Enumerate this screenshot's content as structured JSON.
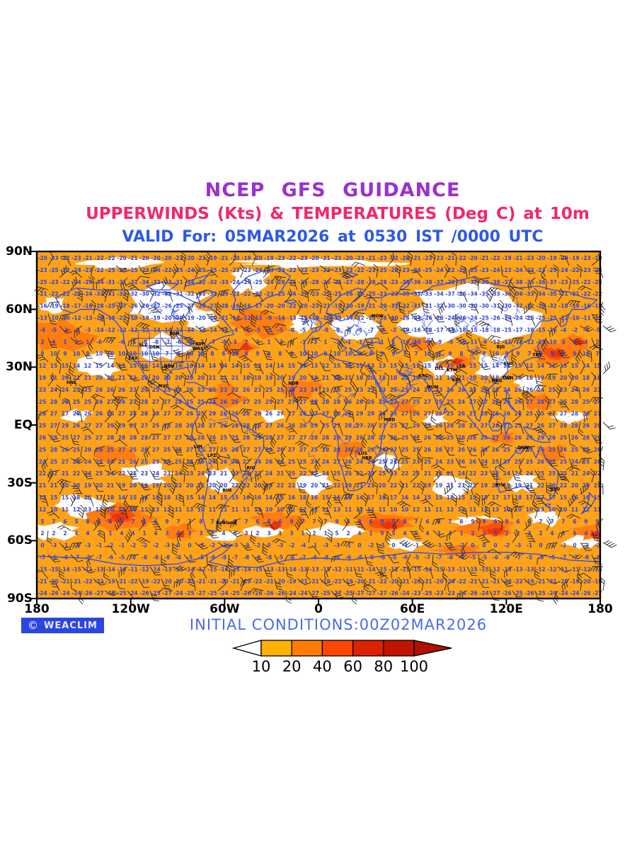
{
  "page": {
    "background": "#FFFFFF"
  },
  "header": {
    "title": "NCEP GFS GUIDANCE",
    "subtitle": "UPPERWINDS (Kts) & TEMPERATURES (Deg C) at 10m",
    "valid_line": "VALID For: 05MAR2026 at 0530 IST /0000 UTC",
    "title_color": "#9B30D0",
    "subtitle_color": "#F1276E",
    "valid_color": "#2D59E8"
  },
  "map": {
    "y_axis_labels": [
      "90N",
      "60N",
      "30N",
      "EQ",
      "30S",
      "60S",
      "90S"
    ],
    "x_axis_labels": [
      "180",
      "120W",
      "60W",
      "0",
      "60E",
      "120E",
      "180"
    ],
    "colors": {
      "calm_white": "#FFFFFF",
      "light_wind_orange": "#FFA216",
      "moderate_wind_orange": "#FF7C0E",
      "strong_wind_orange": "#F8500C",
      "severe_wind_red": "#E8330F",
      "coastline_blue": "#2B4BE8",
      "temperature_blue": "#2E44DE",
      "barb_black": "#222222",
      "graticule_gray": "#999999",
      "frame_black": "#000000"
    },
    "station_labels": [
      {
        "code": "DLH",
        "lon": -92.1,
        "lat": 46.8
      },
      {
        "code": "AVP",
        "lon": -75.7,
        "lat": 41.3
      },
      {
        "code": "WAS",
        "lon": -77.0,
        "lat": 38.9
      },
      {
        "code": "SLC",
        "lon": -111.9,
        "lat": 40.8
      },
      {
        "code": "DEN",
        "lon": -104.9,
        "lat": 39.7
      },
      {
        "code": "LAX",
        "lon": -118.4,
        "lat": 33.9
      },
      {
        "code": "HOU",
        "lon": -95.4,
        "lat": 29.8
      },
      {
        "code": "MXC",
        "lon": -99.1,
        "lat": 19.4
      },
      {
        "code": "HNL",
        "lon": -157.9,
        "lat": 21.3
      },
      {
        "code": "LIM",
        "lon": -77.0,
        "lat": -12.0
      },
      {
        "code": "LPZ",
        "lon": -68.2,
        "lat": -16.5
      },
      {
        "code": "RIO",
        "lon": -43.2,
        "lat": -23.0
      },
      {
        "code": "BUE",
        "lon": -58.4,
        "lat": -34.6
      },
      {
        "code": "Falkland",
        "lon": -59.0,
        "lat": -51.5
      },
      {
        "code": "NDB",
        "lon": -16.0,
        "lat": 21.0
      },
      {
        "code": "LUS",
        "lon": 28.3,
        "lat": -15.4
      },
      {
        "code": "HRR",
        "lon": 31.0,
        "lat": -17.8
      },
      {
        "code": "MOD",
        "lon": 45.3,
        "lat": 2.0
      },
      {
        "code": "MOW",
        "lon": 37.6,
        "lat": 55.8
      },
      {
        "code": "KRC",
        "lon": 67.0,
        "lat": 24.8
      },
      {
        "code": "DEL",
        "lon": 77.2,
        "lat": 28.6
      },
      {
        "code": "MUM",
        "lon": 72.8,
        "lat": 19.0
      },
      {
        "code": "KOL",
        "lon": 88.4,
        "lat": 22.6
      },
      {
        "code": "KTM",
        "lon": 85.3,
        "lat": 27.7
      },
      {
        "code": "LSA",
        "lon": 91.1,
        "lat": 29.7
      },
      {
        "code": "HKG",
        "lon": 114.2,
        "lat": 22.3
      },
      {
        "code": "TWN",
        "lon": 121.0,
        "lat": 23.7
      },
      {
        "code": "SHG",
        "lon": 121.5,
        "lat": 31.2
      },
      {
        "code": "BJG",
        "lon": 116.4,
        "lat": 39.9
      },
      {
        "code": "TKY",
        "lon": 139.7,
        "lat": 35.7
      },
      {
        "code": "DRW",
        "lon": 130.8,
        "lat": -12.4
      },
      {
        "code": "PTH",
        "lon": 115.9,
        "lat": -32.0
      },
      {
        "code": "SYD",
        "lon": 151.2,
        "lat": -33.9
      }
    ]
  },
  "footer": {
    "logo_symbol": "©",
    "logo_text": "WEACLIM",
    "logo_bg": "#2B46E0",
    "initial_conditions": "INITIAL CONDITIONS:00Z02MAR2026",
    "initial_conditions_color": "#4A6BE8"
  },
  "colorbar": {
    "labels": [
      "10",
      "20",
      "40",
      "60",
      "80",
      "100"
    ],
    "segment_colors": [
      "#FFB200",
      "#FF7C00",
      "#FF4700",
      "#DE2100",
      "#C11300"
    ],
    "below_min_color": "#FFFFFF",
    "above_max_color": "#AF1000",
    "units": "Kts"
  },
  "chart_data": {
    "type": "heatmap",
    "title": "NCEP GFS GUIDANCE",
    "subtitle": "UPPERWINDS (Kts) & TEMPERATURES (Deg C) at 10m",
    "valid": "VALID For: 05MAR2026 at 0530 IST /0000 UTC",
    "initial_conditions": "INITIAL CONDITIONS:00Z02MAR2026",
    "projection": "equirectangular world map 180W-180E, 90S-90N",
    "x_axis": {
      "ticks": [
        "180",
        "120W",
        "60W",
        "0",
        "60E",
        "120E",
        "180"
      ],
      "range_deg": [
        -180,
        180
      ]
    },
    "y_axis": {
      "ticks": [
        "90N",
        "60N",
        "30N",
        "EQ",
        "30S",
        "60S",
        "90S"
      ],
      "range_deg": [
        -90,
        90
      ]
    },
    "wind_speed_shading": {
      "units": "Kts",
      "levels": [
        10,
        20,
        40,
        60,
        80,
        100
      ],
      "level_colors": [
        "#FFB200",
        "#FF7C00",
        "#FF4700",
        "#DE2100",
        "#C11300"
      ],
      "below_color": "#FFFFFF"
    },
    "temperature_overlay": {
      "units": "Deg C",
      "lats": [
        90,
        80,
        70,
        60,
        50,
        40,
        30,
        20,
        10,
        0,
        -10,
        -20,
        -30,
        -40,
        -50,
        -60,
        -70,
        -80,
        -90
      ],
      "values": [
        -20,
        -24,
        -23,
        -16,
        -4,
        6,
        15,
        24,
        27,
        27,
        27,
        25,
        21,
        14,
        7,
        0,
        -8,
        -20,
        -28
      ]
    }
  }
}
